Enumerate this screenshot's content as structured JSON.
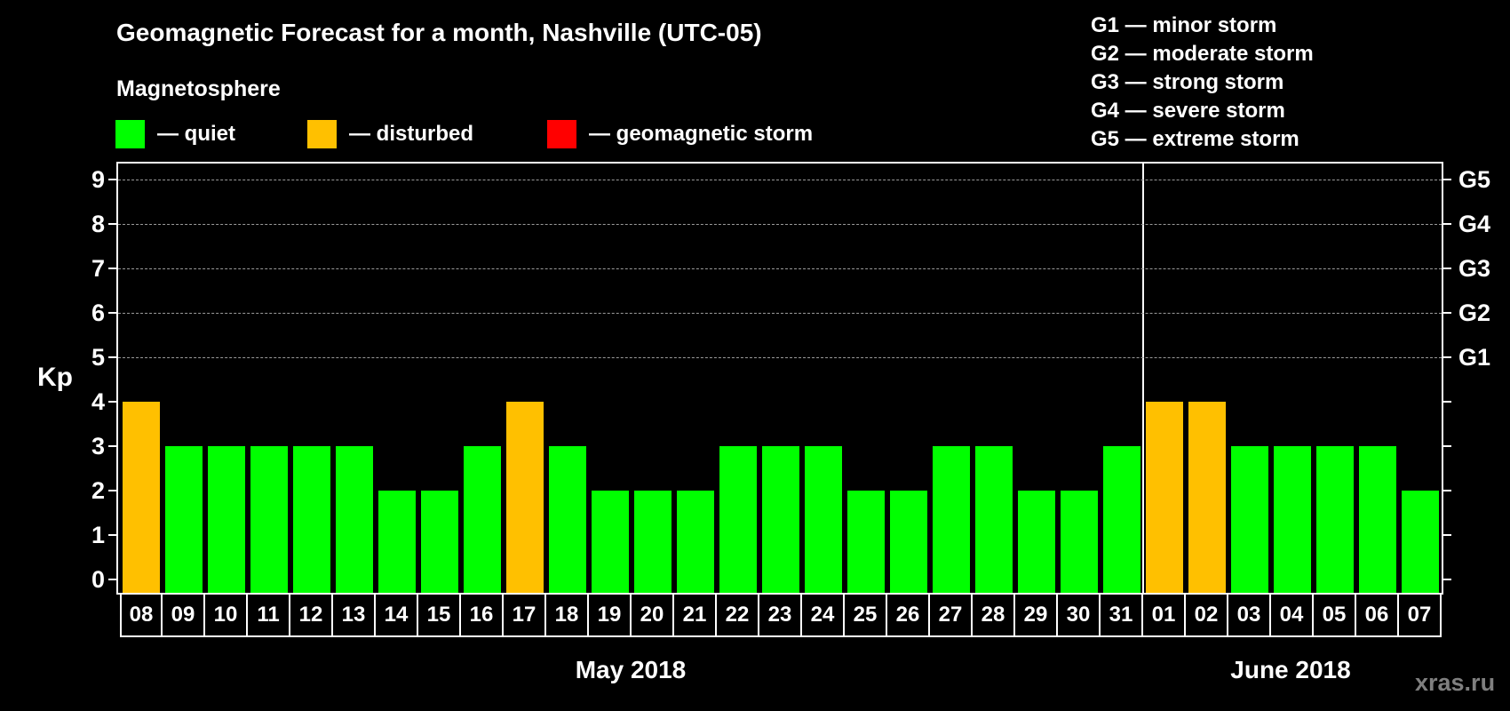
{
  "header": {
    "title": "Geomagnetic Forecast for a month, Nashville (UTC-05)",
    "subtitle": "Magnetosphere"
  },
  "legend": {
    "items": [
      {
        "label": "— quiet",
        "color": "#00ff00"
      },
      {
        "label": "— disturbed",
        "color": "#ffc000"
      },
      {
        "label": "— geomagnetic storm",
        "color": "#ff0000"
      }
    ]
  },
  "storm_scale": {
    "items": [
      "G1 — minor storm",
      "G2 — moderate storm",
      "G3 — strong storm",
      "G4 — severe storm",
      "G5 — extreme storm"
    ]
  },
  "axes": {
    "ylabel": "Kp",
    "yticks": [
      "0",
      "1",
      "2",
      "3",
      "4",
      "5",
      "6",
      "7",
      "8",
      "9"
    ],
    "right_labels": {
      "5": "G1",
      "6": "G2",
      "7": "G3",
      "8": "G4",
      "9": "G5"
    }
  },
  "months": {
    "first": "May 2018",
    "second": "June 2018"
  },
  "watermark": "xras.ru",
  "chart_data": {
    "type": "bar",
    "title": "Geomagnetic Forecast for a month, Nashville (UTC-05)",
    "xlabel": "May 2018 / June 2018",
    "ylabel": "Kp",
    "ylim": [
      0,
      9
    ],
    "grid": true,
    "legend_position": "top",
    "categories": [
      "08",
      "09",
      "10",
      "11",
      "12",
      "13",
      "14",
      "15",
      "16",
      "17",
      "18",
      "19",
      "20",
      "21",
      "22",
      "23",
      "24",
      "25",
      "26",
      "27",
      "28",
      "29",
      "30",
      "31",
      "01",
      "02",
      "03",
      "04",
      "05",
      "06",
      "07"
    ],
    "values": [
      4,
      3,
      3,
      3,
      3,
      3,
      2,
      2,
      3,
      4,
      3,
      2,
      2,
      2,
      3,
      3,
      3,
      2,
      2,
      3,
      3,
      2,
      2,
      3,
      4,
      4,
      3,
      3,
      3,
      3,
      2
    ],
    "status": [
      "disturbed",
      "quiet",
      "quiet",
      "quiet",
      "quiet",
      "quiet",
      "quiet",
      "quiet",
      "quiet",
      "disturbed",
      "quiet",
      "quiet",
      "quiet",
      "quiet",
      "quiet",
      "quiet",
      "quiet",
      "quiet",
      "quiet",
      "quiet",
      "quiet",
      "quiet",
      "quiet",
      "quiet",
      "disturbed",
      "disturbed",
      "quiet",
      "quiet",
      "quiet",
      "quiet",
      "quiet"
    ],
    "status_colors": {
      "quiet": "#00ff00",
      "disturbed": "#ffc000",
      "storm": "#ff0000"
    },
    "month_groups": [
      {
        "label": "May 2018",
        "from": "08",
        "to": "31"
      },
      {
        "label": "June 2018",
        "from": "01",
        "to": "07"
      }
    ],
    "right_axis": {
      "5": "G1",
      "6": "G2",
      "7": "G3",
      "8": "G4",
      "9": "G5"
    }
  }
}
